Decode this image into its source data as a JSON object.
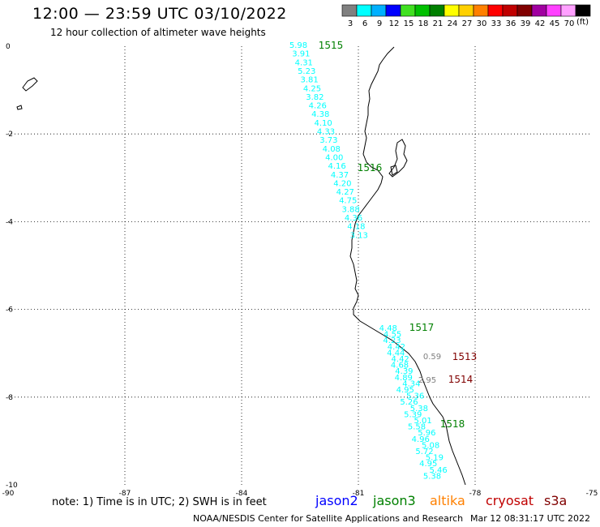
{
  "header": {
    "title": "12:00 — 23:59 UTC 03/10/2022",
    "subtitle": "12 hour collection of altimeter wave heights"
  },
  "legend": {
    "unit": "(ft)",
    "bins": [
      {
        "label": "3",
        "color": "#808080"
      },
      {
        "label": "6",
        "color": "#00ffff"
      },
      {
        "label": "9",
        "color": "#00b0ff"
      },
      {
        "label": "12",
        "color": "#0000ff"
      },
      {
        "label": "15",
        "color": "#40e020"
      },
      {
        "label": "18",
        "color": "#00c000"
      },
      {
        "label": "21",
        "color": "#008000"
      },
      {
        "label": "24",
        "color": "#ffff00"
      },
      {
        "label": "27",
        "color": "#ffd000"
      },
      {
        "label": "30",
        "color": "#ff8000"
      },
      {
        "label": "33",
        "color": "#ff0000"
      },
      {
        "label": "36",
        "color": "#c00000"
      },
      {
        "label": "39",
        "color": "#800000"
      },
      {
        "label": "42",
        "color": "#a000a0"
      },
      {
        "label": "45",
        "color": "#ff40ff"
      },
      {
        "label": "70",
        "color": "#ffa0ff"
      },
      {
        "label": "",
        "color": "#000000"
      }
    ]
  },
  "map": {
    "lon_range": [
      -90,
      -75
    ],
    "lat_range": [
      -10,
      0
    ],
    "lon_ticks": [
      "-90",
      "-87",
      "-84",
      "-81",
      "-78",
      "-75"
    ],
    "lat_ticks": [
      "0",
      "-2",
      "-4",
      "-6",
      "-8",
      "-10"
    ],
    "grid": "dotted",
    "tracks": [
      {
        "id": "1515",
        "color": "#008000"
      },
      {
        "id": "1516",
        "color": "#008000"
      },
      {
        "id": "1517",
        "color": "#008000"
      },
      {
        "id": "1518",
        "color": "#008000"
      },
      {
        "id": "1513",
        "color": "#800000"
      },
      {
        "id": "1514",
        "color": "#800000"
      }
    ],
    "track1_values": [
      "5.98",
      "3.91",
      "4.31",
      "5.23",
      "3.81",
      "4.25",
      "3.82",
      "4.26",
      "4.38",
      "4.10",
      "4.33",
      "3.73",
      "4.08",
      "4.00",
      "4.16",
      "4.37",
      "4.20",
      "4.27",
      "4.75",
      "3.88",
      "4.36",
      "4.18",
      "3.13"
    ],
    "track2_values": [
      "4.48",
      "4.55",
      "4.23",
      "4.42",
      "4.44",
      "4.42",
      "4.68",
      "4.39",
      "4.89",
      "4.34",
      "4.95",
      "5.36",
      "5.26",
      "5.38",
      "5.39",
      "5.01",
      "5.58",
      "5.96",
      "4.96",
      "5.08",
      "5.72",
      "5.19",
      "4.95",
      "5.46",
      "5.38"
    ],
    "gray_values": [
      "0.59",
      "2.95"
    ]
  },
  "footer": {
    "note": "note:  1) Time is in UTC;  2) SWH is in feet",
    "missions": [
      {
        "name": "jason2",
        "color": "#0000ff"
      },
      {
        "name": "jason3",
        "color": "#008000"
      },
      {
        "name": "altika",
        "color": "#ff8000"
      },
      {
        "name": "cryosat",
        "color": "#c00000"
      },
      {
        "name": "s3a",
        "color": "#800000"
      }
    ],
    "credit": "NOAA/NESDIS Center for Satellite Applications and Research",
    "timestamp": "Mar 12 08:31:17 UTC 2022"
  }
}
